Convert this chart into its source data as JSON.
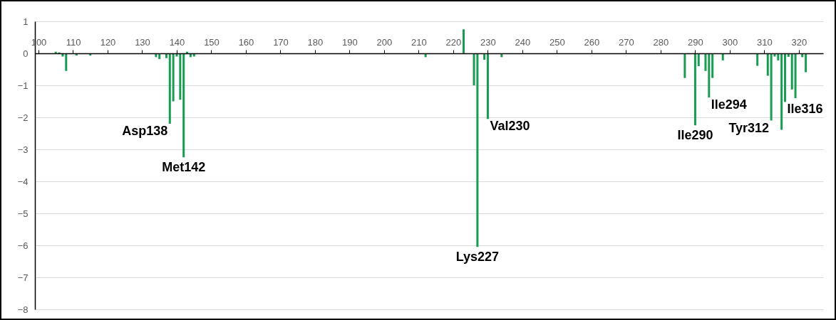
{
  "chart_data": {
    "type": "bar",
    "color": "#179c52",
    "x": [
      105,
      106,
      107,
      108,
      111,
      115,
      134,
      135,
      137,
      138,
      139,
      140,
      141,
      142,
      143,
      144,
      145,
      212,
      223,
      226,
      227,
      229,
      230,
      234,
      287,
      290,
      291,
      293,
      294,
      295,
      298,
      308,
      311,
      312,
      313,
      314,
      315,
      316,
      317,
      318,
      319,
      321,
      322
    ],
    "values": [
      0.05,
      0.03,
      -0.1,
      -0.55,
      -0.07,
      -0.07,
      -0.12,
      -0.18,
      -0.15,
      -2.2,
      -1.5,
      -0.1,
      -1.45,
      -3.25,
      0.05,
      -0.12,
      -0.1,
      -0.12,
      0.75,
      -1.0,
      -6.05,
      -0.2,
      -2.05,
      -0.12,
      -0.77,
      -2.25,
      -0.4,
      -0.55,
      -1.38,
      -0.77,
      -0.22,
      -0.39,
      -0.7,
      -2.1,
      -0.1,
      -0.22,
      -2.39,
      -1.52,
      -0.11,
      -1.13,
      -1.4,
      -0.12,
      -0.59
    ],
    "xlim": [
      100,
      326
    ],
    "xticks": [
      100,
      110,
      120,
      130,
      140,
      150,
      160,
      170,
      180,
      190,
      200,
      210,
      220,
      230,
      240,
      250,
      260,
      270,
      280,
      290,
      300,
      310,
      320
    ],
    "ylim": [
      -8,
      1
    ],
    "yticks": [
      -8,
      -7,
      -6,
      -5,
      -4,
      -3,
      -2,
      -1,
      0,
      1
    ],
    "grid": "y",
    "annotations": [
      {
        "text": "Asp138",
        "x": 138,
        "y": -2.2
      },
      {
        "text": "Met142",
        "x": 142,
        "y": -3.25
      },
      {
        "text": "Lys227",
        "x": 227,
        "y": -6.05
      },
      {
        "text": "Val230",
        "x": 230,
        "y": -2.05
      },
      {
        "text": "Ile290",
        "x": 290,
        "y": -2.25
      },
      {
        "text": "Ile294",
        "x": 294,
        "y": -1.38
      },
      {
        "text": "Tyr312",
        "x": 312,
        "y": -2.1
      },
      {
        "text": "Ile316",
        "x": 316,
        "y": -1.52
      }
    ]
  }
}
